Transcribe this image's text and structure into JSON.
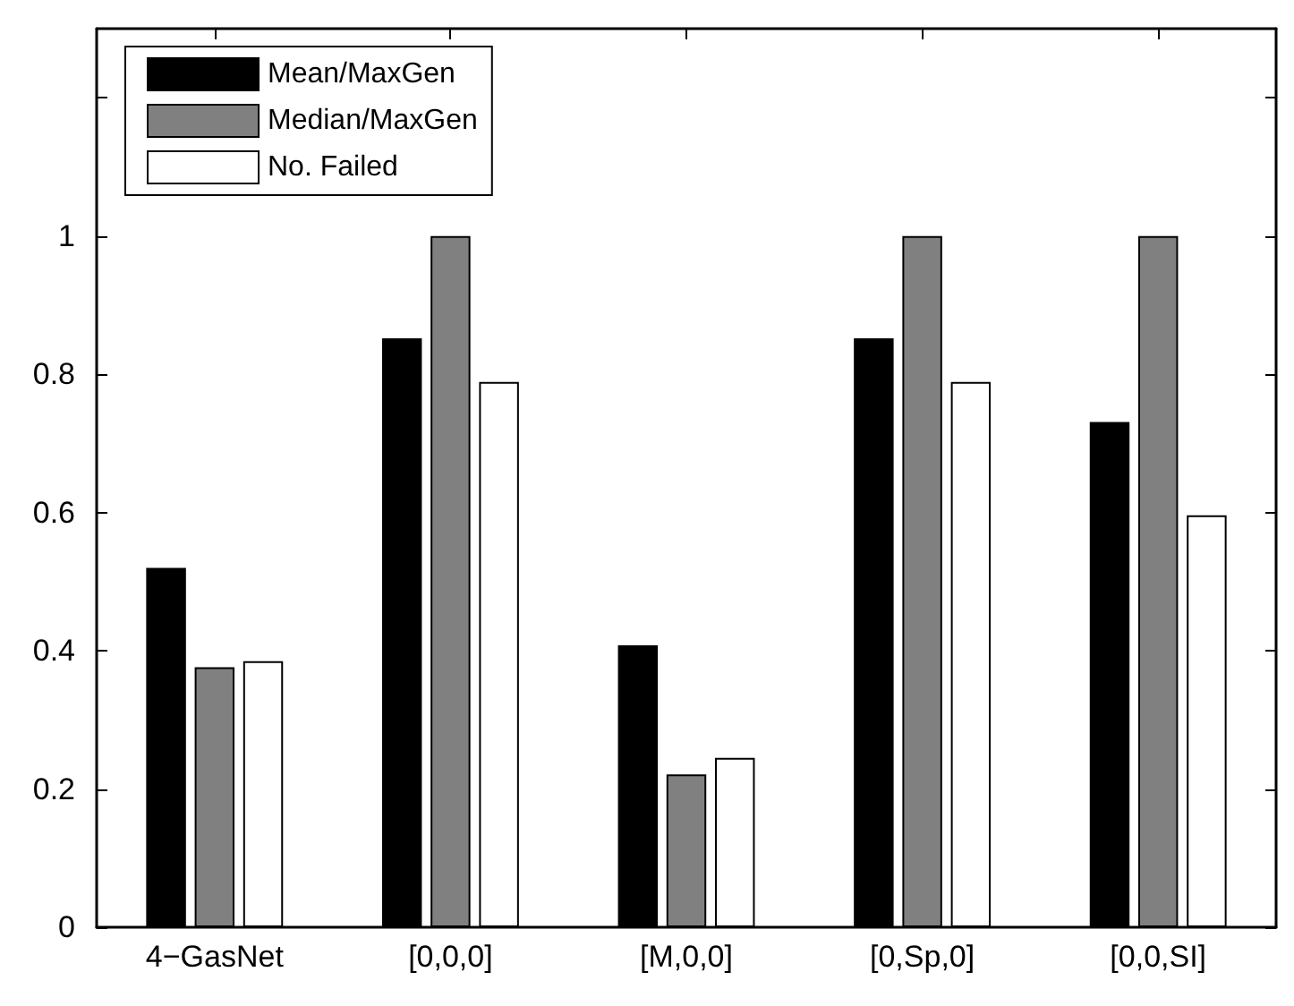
{
  "chart_data": {
    "type": "bar",
    "categories": [
      "4−GasNet",
      "[0,0,0]",
      "[M,0,0]",
      "[0,Sp,0]",
      "[0,0,SI]"
    ],
    "series": [
      {
        "name": "Mean/MaxGen",
        "color": "#000000",
        "values": [
          0.52,
          0.852,
          0.408,
          0.852,
          0.731
        ]
      },
      {
        "name": "Median/MaxGen",
        "color": "#808080",
        "values": [
          0.376,
          1,
          0.221,
          1,
          1
        ]
      },
      {
        "name": "No. Failed",
        "color": "#ffffff",
        "values": [
          0.385,
          0.789,
          0.245,
          0.789,
          0.596
        ]
      }
    ],
    "ylim": [
      0,
      1.3
    ],
    "yticks": [
      0,
      0.2,
      0.4,
      0.6,
      0.8,
      1,
      {
        "value": 1.2,
        "label": null
      }
    ],
    "grid": false,
    "legend": "top left"
  }
}
